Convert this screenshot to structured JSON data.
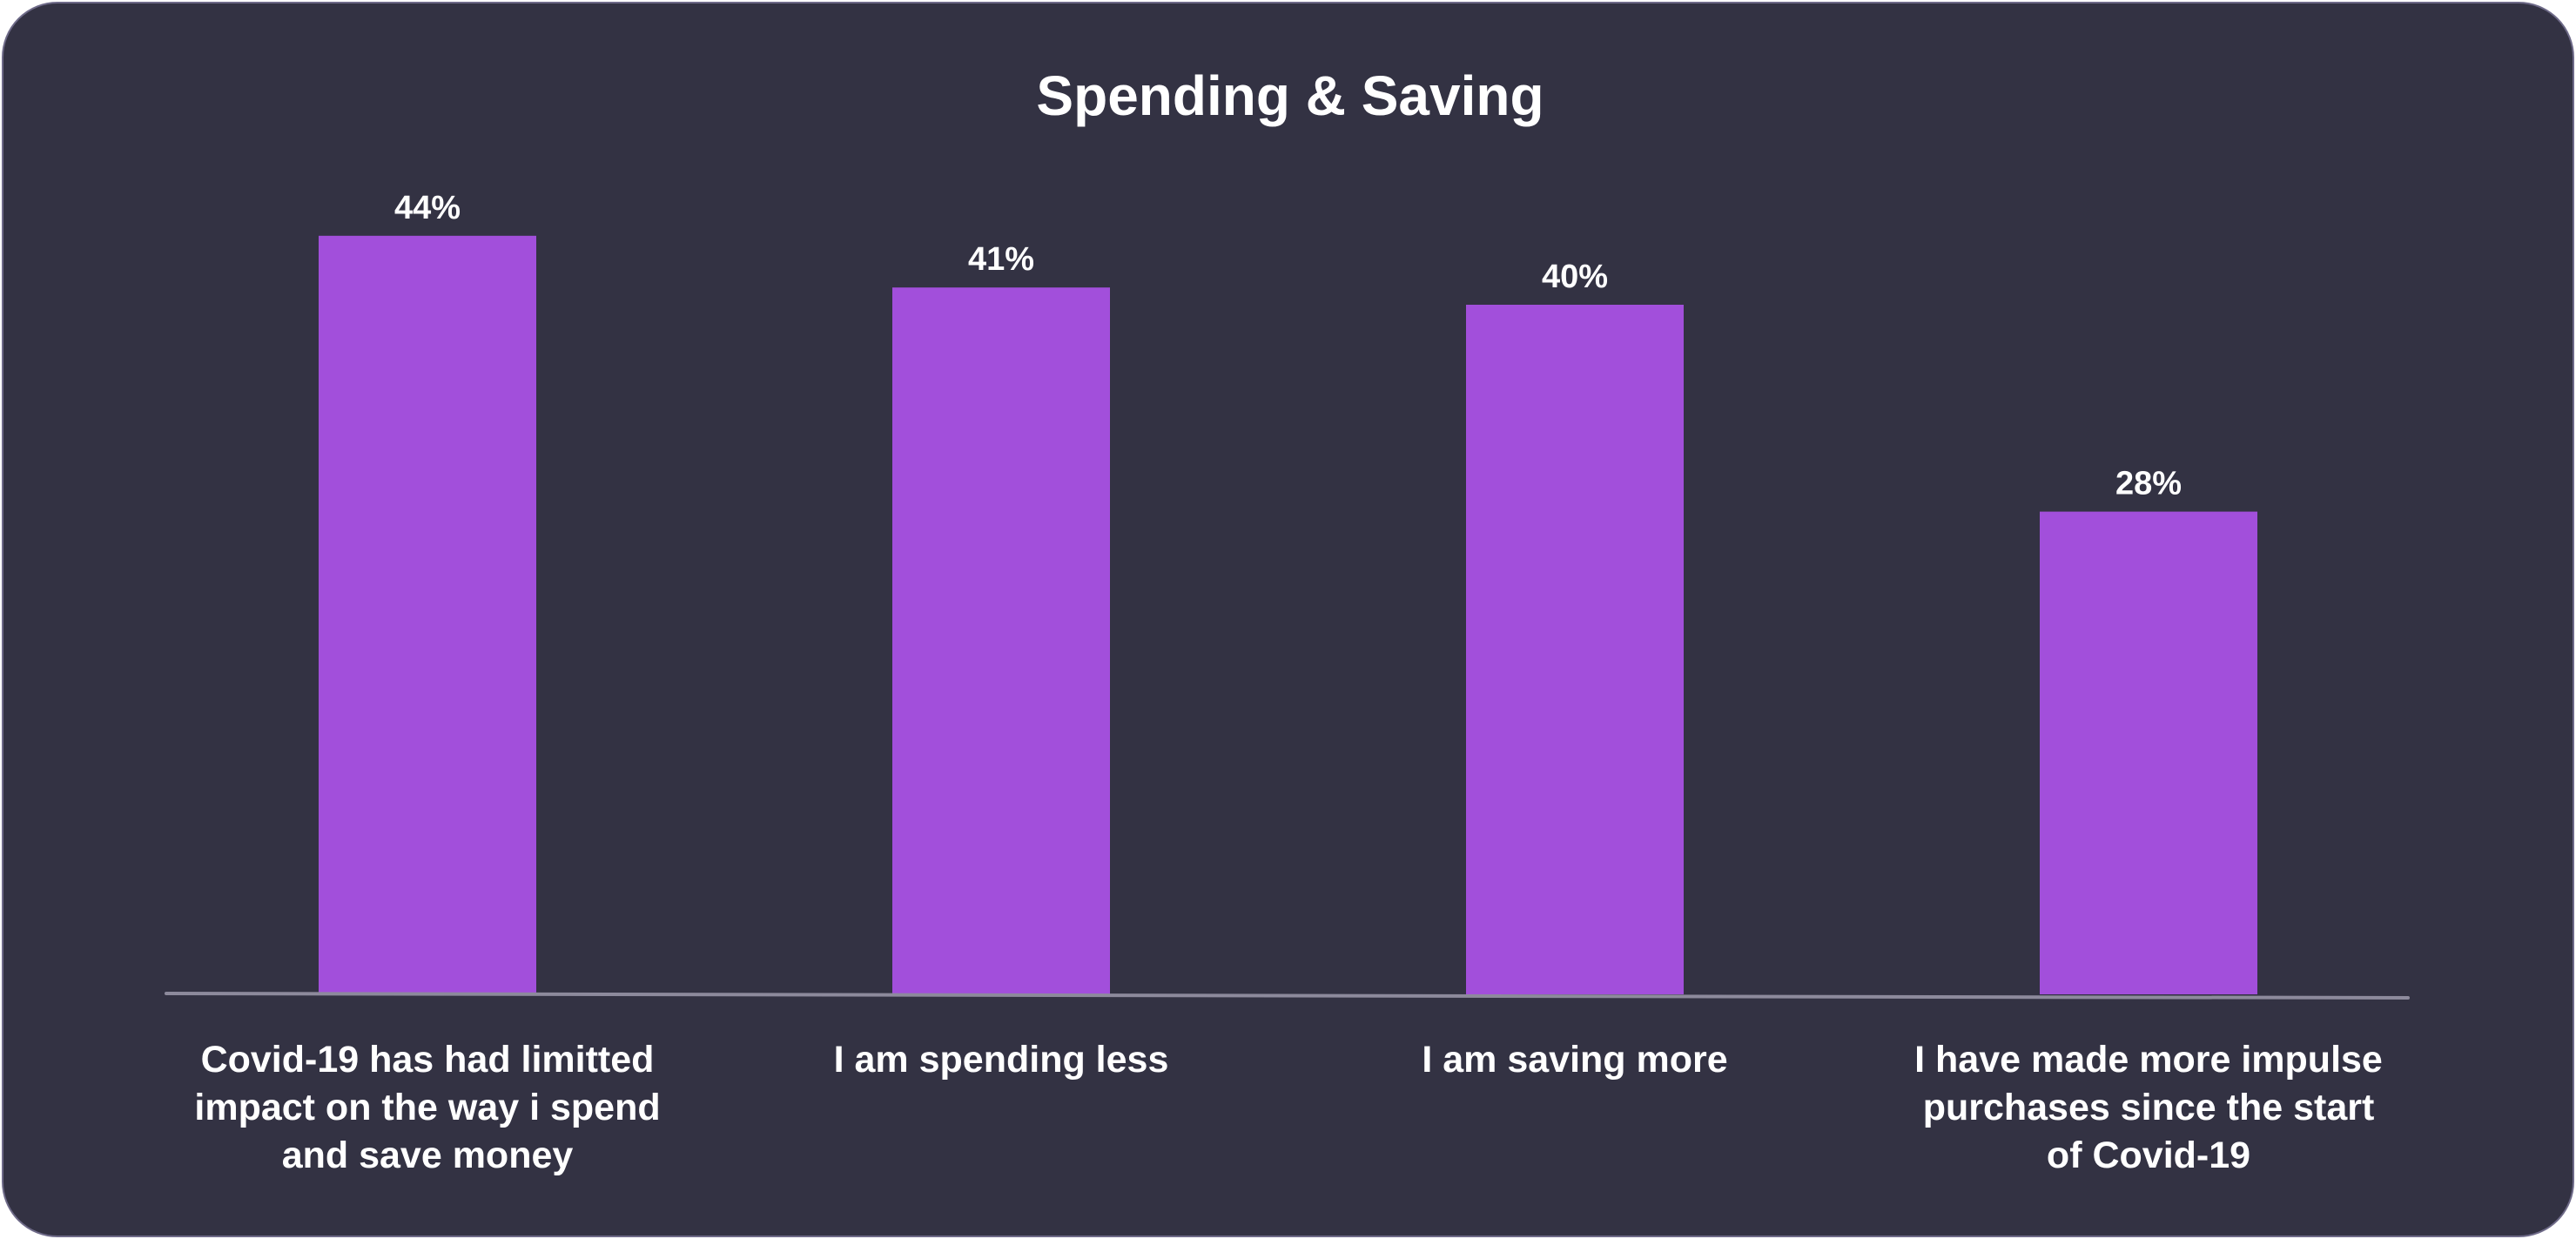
{
  "chart_data": {
    "type": "bar",
    "title": "Spending & Saving",
    "categories": [
      "Covid-19 has had limitted impact on the way i spend and save money",
      "I am spending less",
      "I am saving more",
      "I have made more impulse purchases since the start of Covid-19"
    ],
    "category_lines": [
      [
        "Covid-19 has had limitted",
        "impact on the way i spend",
        "and save money"
      ],
      [
        "I am spending less"
      ],
      [
        "I am saving more"
      ],
      [
        "I have made more impulse",
        "purchases since the start",
        "of Covid-19"
      ]
    ],
    "values": [
      44,
      41,
      40,
      28
    ],
    "value_labels": [
      "44%",
      "41%",
      "40%",
      "28%"
    ],
    "xlabel": "",
    "ylabel": "",
    "ylim": [
      0,
      44
    ],
    "grid": false,
    "legend": "none",
    "colors": {
      "bar": "#a24fdb",
      "background": "#333243",
      "axis": "#8d8a9c",
      "text": "#ffffff"
    }
  }
}
